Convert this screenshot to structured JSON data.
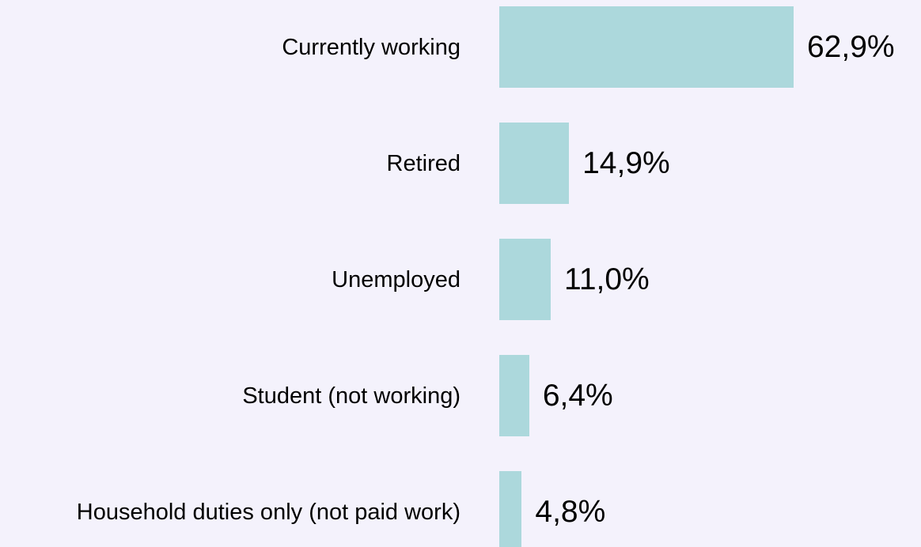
{
  "chart_data": {
    "type": "bar",
    "orientation": "horizontal",
    "categories": [
      "Currently working",
      "Retired",
      "Unemployed",
      "Student (not working)",
      "Household duties only (not paid work)"
    ],
    "values": [
      62.9,
      14.9,
      11.0,
      6.4,
      4.8
    ],
    "value_labels": [
      "62,9%",
      "14,9%",
      "11,0%",
      "6,4%",
      "4,8%"
    ],
    "color": "#acd8dc"
  }
}
